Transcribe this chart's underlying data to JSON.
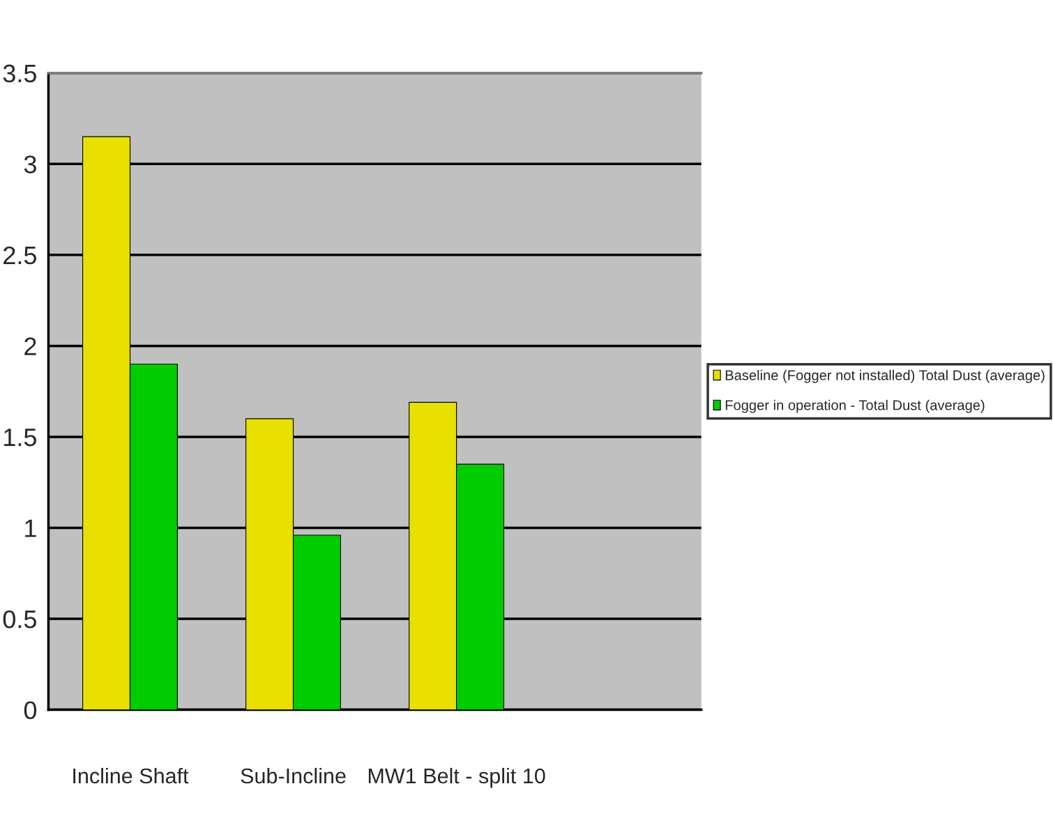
{
  "chart_data": {
    "type": "bar",
    "categories": [
      "Incline Shaft",
      "Sub-Incline",
      "MW1 Belt - split 10",
      null
    ],
    "series": [
      {
        "name": "Baseline (Fogger not installed) Total Dust (average)",
        "color": "#e8e000",
        "values": [
          3.15,
          1.6,
          1.69,
          null
        ]
      },
      {
        "name": "Fogger in operation - Total Dust (average)",
        "color": "#00cc00",
        "values": [
          1.9,
          0.96,
          1.35,
          null
        ]
      }
    ],
    "ylim": [
      0,
      3.5
    ],
    "yticks": [
      0,
      0.5,
      1,
      1.5,
      2,
      2.5,
      3,
      3.5
    ],
    "grid": "y",
    "legend": "right"
  }
}
